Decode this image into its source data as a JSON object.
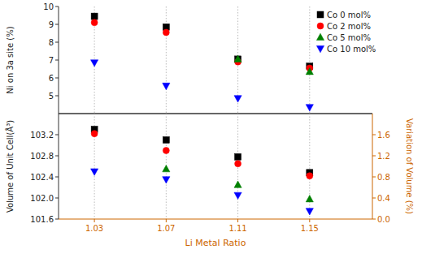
{
  "chart_data": [
    {
      "type": "scatter",
      "ylabel": "Ni on 3a site (%)",
      "x": [
        1.03,
        1.07,
        1.11,
        1.15
      ],
      "xlim": [
        1.01,
        1.185
      ],
      "xticks": [
        1.03,
        1.07,
        1.11,
        1.15
      ],
      "ylim": [
        4.0,
        10.0
      ],
      "yticks": [
        5,
        6,
        7,
        8,
        9,
        10
      ],
      "grid": "x",
      "legend": "upper right",
      "tick_labels": "y",
      "series": [
        {
          "name": "Co 0 mol%",
          "color": "black",
          "marker": "square",
          "values": [
            9.45,
            8.85,
            7.05,
            6.65
          ]
        },
        {
          "name": "Co 2 mol%",
          "color": "red",
          "marker": "circle",
          "values": [
            9.1,
            8.55,
            6.9,
            6.55
          ]
        },
        {
          "name": "Co 5 mol%",
          "color": "green",
          "marker": "triangle-up",
          "values": [
            null,
            null,
            7.05,
            6.35
          ]
        },
        {
          "name": "Co 10 mol%",
          "color": "blue",
          "marker": "triangle-down",
          "values": [
            6.85,
            5.55,
            4.85,
            4.35
          ]
        }
      ]
    },
    {
      "type": "scatter",
      "xlabel": "Li Metal Ratio",
      "ylabel": "Volume of Unit Cell(Å³)",
      "y2label": "Variation of Volume (%)",
      "x": [
        1.03,
        1.07,
        1.11,
        1.15
      ],
      "xlim": [
        1.01,
        1.185
      ],
      "xticks": [
        1.03,
        1.07,
        1.11,
        1.15
      ],
      "ylim": [
        101.6,
        103.6
      ],
      "yticks": [
        101.6,
        {
          "value": 102.0,
          "label": "102.0"
        },
        102.4,
        102.8,
        103.2
      ],
      "y2lim": [
        0.0,
        2.0
      ],
      "y2ticks": [
        {
          "value": 0.0,
          "label": "0.0"
        },
        0.4,
        0.8,
        1.2,
        1.6
      ],
      "grid": "x",
      "series": [
        {
          "color": "black",
          "marker": "square",
          "values": [
            103.3,
            103.1,
            102.78,
            102.48
          ]
        },
        {
          "color": "red",
          "marker": "circle",
          "values": [
            103.22,
            102.9,
            102.65,
            102.42
          ]
        },
        {
          "color": "green",
          "marker": "triangle-up",
          "values": [
            null,
            102.55,
            102.25,
            101.98
          ]
        },
        {
          "color": "blue",
          "marker": "triangle-down",
          "values": [
            102.5,
            102.35,
            102.05,
            101.75
          ]
        }
      ]
    }
  ]
}
